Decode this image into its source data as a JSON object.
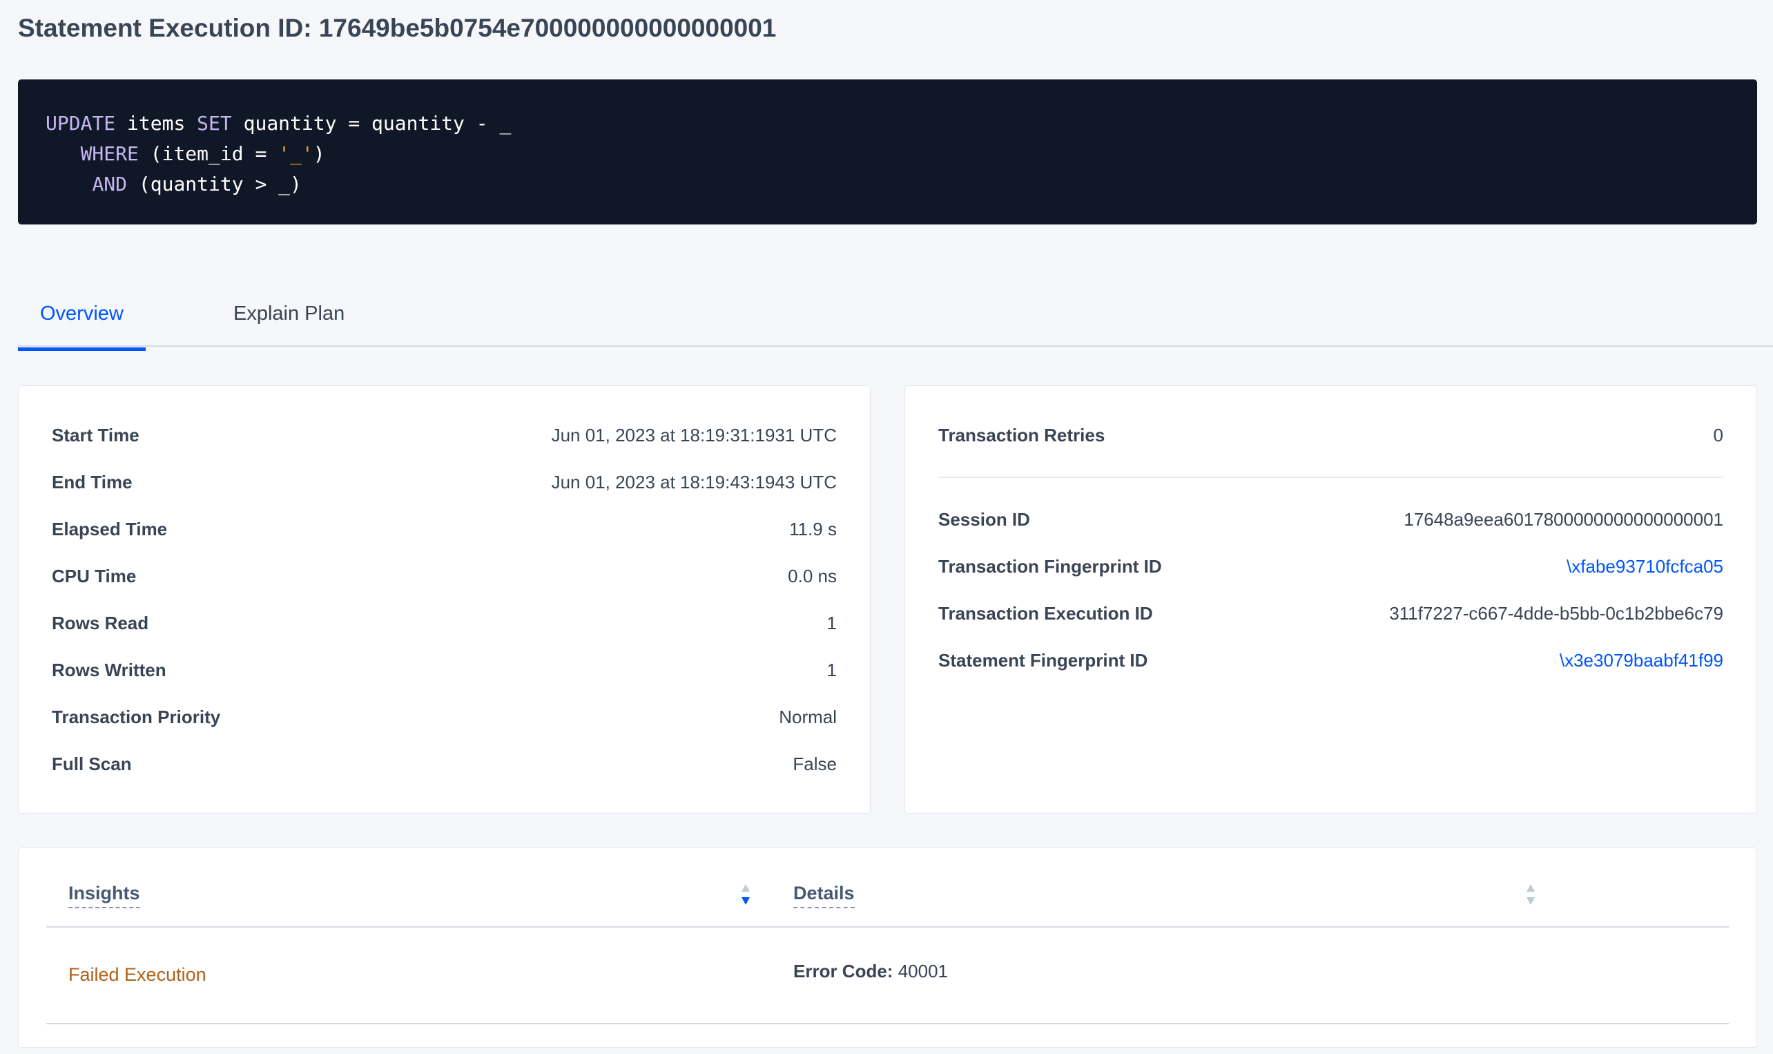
{
  "title": "Statement Execution ID: 17649be5b0754e700000000000000001",
  "sql": {
    "line1": [
      {
        "t": "UPDATE",
        "k": true
      },
      {
        "t": " items "
      },
      {
        "t": "SET",
        "k": true
      },
      {
        "t": " quantity = quantity - _"
      }
    ],
    "line2": [
      {
        "t": "   "
      },
      {
        "t": "WHERE",
        "k": true
      },
      {
        "t": " (item_id = "
      },
      {
        "t": "'_'",
        "s": true
      },
      {
        "t": ")"
      }
    ],
    "line3": [
      {
        "t": "    "
      },
      {
        "t": "AND",
        "k": true
      },
      {
        "t": " (quantity > _)"
      }
    ]
  },
  "tabs": [
    "Overview",
    "Explain Plan"
  ],
  "left": [
    {
      "label": "Start Time",
      "value": "Jun 01, 2023 at 18:19:31:1931 UTC"
    },
    {
      "label": "End Time",
      "value": "Jun 01, 2023 at 18:19:43:1943 UTC"
    },
    {
      "label": "Elapsed Time",
      "value": "11.9 s"
    },
    {
      "label": "CPU Time",
      "value": "0.0 ns"
    },
    {
      "label": "Rows Read",
      "value": "1"
    },
    {
      "label": "Rows Written",
      "value": "1"
    },
    {
      "label": "Transaction Priority",
      "value": "Normal"
    },
    {
      "label": "Full Scan",
      "value": "False"
    }
  ],
  "right": {
    "retries": {
      "label": "Transaction Retries",
      "value": "0"
    },
    "items": [
      {
        "label": "Session ID",
        "value": "17648a9eea6017800000000000000001",
        "link": false
      },
      {
        "label": "Transaction Fingerprint ID",
        "value": "\\xfabe93710fcfca05",
        "link": true
      },
      {
        "label": "Transaction Execution ID",
        "value": "311f7227-c667-4dde-b5bb-0c1b2bbe6c79",
        "link": false
      },
      {
        "label": "Statement Fingerprint ID",
        "value": "\\x3e3079baabf41f99",
        "link": true
      }
    ]
  },
  "insights": {
    "headers": [
      "Insights",
      "Details"
    ],
    "row": {
      "insight": "Failed Execution",
      "detail_label": "Error Code:",
      "detail_value": "40001"
    }
  },
  "colors": {
    "accent": "#0055ff",
    "warning": "#b0621a",
    "code_bg": "#101727"
  }
}
